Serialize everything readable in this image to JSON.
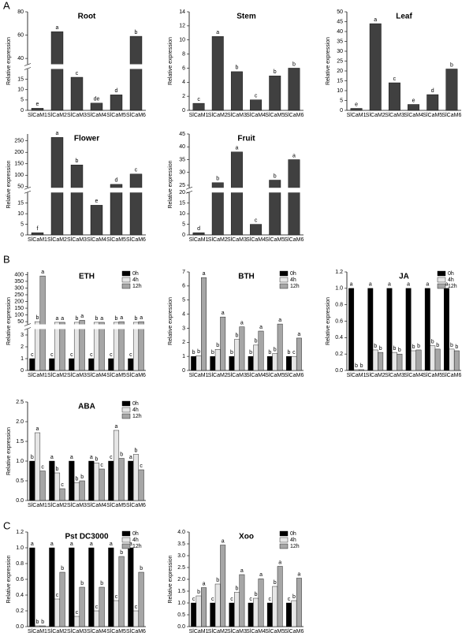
{
  "panel_labels": [
    "A",
    "B",
    "C"
  ],
  "chart_data": [
    {
      "type": "bar",
      "title": "Root",
      "ylabel": "Relative expression",
      "categories": [
        "SlCaM1",
        "SlCaM2",
        "SlCaM3",
        "SlCaM4",
        "SlCaM5",
        "SlCaM6"
      ],
      "values": [
        1,
        63,
        16,
        3.5,
        7.5,
        59
      ],
      "letters": [
        "e",
        "a",
        "c",
        "de",
        "d",
        "b"
      ],
      "color": "#404040",
      "ylim": [
        0,
        80
      ],
      "ybreak": [
        20,
        35
      ],
      "yticks": [
        0,
        5,
        10,
        15,
        40,
        60,
        80
      ]
    },
    {
      "type": "bar",
      "title": "Stem",
      "ylabel": "Relative expression",
      "categories": [
        "SlCaM1",
        "SlCaM2",
        "SlCaM3",
        "SlCaM4",
        "SlCaM5",
        "SlCaM6"
      ],
      "values": [
        1,
        10.5,
        5.5,
        1.5,
        4.9,
        6
      ],
      "letters": [
        "c",
        "a",
        "b",
        "c",
        "b",
        "b"
      ],
      "color": "#404040",
      "ylim": [
        0,
        14
      ],
      "yticks": [
        0,
        2,
        4,
        6,
        8,
        10,
        12,
        14
      ]
    },
    {
      "type": "bar",
      "title": "Leaf",
      "ylabel": "Relative expression",
      "categories": [
        "SlCaM1",
        "SlCaM2",
        "SlCaM3",
        "SlCaM4",
        "SlCaM5",
        "SlCaM6"
      ],
      "values": [
        1,
        44,
        14,
        3,
        8,
        21
      ],
      "letters": [
        "e",
        "a",
        "c",
        "e",
        "d",
        "b"
      ],
      "color": "#404040",
      "ylim": [
        0,
        50
      ],
      "yticks": [
        0,
        5,
        10,
        15,
        20,
        25,
        30,
        35,
        40,
        45,
        50
      ]
    },
    {
      "type": "bar",
      "title": "Flower",
      "ylabel": "Relative expression",
      "categories": [
        "SlCaM1",
        "SlCaM2",
        "SlCaM3",
        "SlCaM4",
        "SlCaM5",
        "SlCaM6"
      ],
      "values": [
        1,
        265,
        145,
        14,
        60,
        105
      ],
      "letters": [
        "f",
        "a",
        "b",
        "e",
        "d",
        "c"
      ],
      "color": "#404040",
      "ylim": [
        0,
        280
      ],
      "ybreak": [
        20,
        45
      ],
      "yticks": [
        0,
        5,
        10,
        15,
        50,
        100,
        150,
        200,
        250
      ]
    },
    {
      "type": "bar",
      "title": "Fruit",
      "ylabel": "Relative expression",
      "categories": [
        "SlCaM1",
        "SlCaM2",
        "SlCaM3",
        "SlCaM4",
        "SlCaM5",
        "SlCaM6"
      ],
      "values": [
        1,
        26,
        38,
        5,
        27,
        35
      ],
      "letters": [
        "d",
        "b",
        "a",
        "c",
        "b",
        "a"
      ],
      "color": "#404040",
      "ylim": [
        0,
        45
      ],
      "ybreak": [
        20,
        24
      ],
      "yticks": [
        0,
        5,
        10,
        15,
        20,
        25,
        30,
        35,
        40,
        45
      ]
    },
    {
      "type": "grouped_bar",
      "title": "ETH",
      "ylabel": "Relative expression",
      "legend": "upper right",
      "categories": [
        "SlCaM1",
        "SlCaM2",
        "SlCaM3",
        "SlCaM4",
        "SlCaM5",
        "SlCaM6"
      ],
      "ylim": [
        0,
        420
      ],
      "ybreak": [
        3.5,
        30
      ],
      "yticks": [
        0,
        1,
        2,
        3,
        50,
        100,
        150,
        200,
        250,
        300,
        350,
        400
      ],
      "series": [
        {
          "name": "0h",
          "color": "#000000",
          "values": [
            1,
            1,
            1,
            1,
            1,
            1
          ],
          "letters": [
            "c",
            "c",
            "c",
            "c",
            "c",
            "c"
          ]
        },
        {
          "name": "4h",
          "color": "#e6e6e6",
          "values": [
            50,
            45,
            45,
            45,
            45,
            45
          ],
          "letters": [
            "b",
            "a",
            "b",
            "b",
            "b",
            "b"
          ]
        },
        {
          "name": "12h",
          "color": "#a6a6a6",
          "values": [
            390,
            45,
            60,
            45,
            50,
            50
          ],
          "letters": [
            "a",
            "a",
            "a",
            "a",
            "a",
            "a"
          ]
        }
      ]
    },
    {
      "type": "grouped_bar",
      "title": "BTH",
      "ylabel": "Relative expression",
      "legend": "upper right",
      "categories": [
        "SlCaM1",
        "SlCaM2",
        "SlCaM3",
        "SlCaM4",
        "SlCaM5",
        "SlCaM6"
      ],
      "ylim": [
        0,
        7
      ],
      "yticks": [
        0,
        1,
        2,
        3,
        4,
        5,
        6,
        7
      ],
      "series": [
        {
          "name": "0h",
          "color": "#000000",
          "values": [
            1,
            1,
            1,
            1,
            1,
            1
          ],
          "letters": [
            "b",
            "b",
            "b",
            "b",
            "b",
            "b"
          ]
        },
        {
          "name": "4h",
          "color": "#e6e6e6",
          "values": [
            1.05,
            1.5,
            2.2,
            1.8,
            1.2,
            1
          ],
          "letters": [
            "b",
            "b",
            "b",
            "b",
            "b",
            "c"
          ]
        },
        {
          "name": "12h",
          "color": "#a6a6a6",
          "values": [
            6.6,
            3.8,
            3.1,
            2.8,
            3.3,
            2.3
          ],
          "letters": [
            "a",
            "a",
            "a",
            "a",
            "a",
            "a"
          ]
        }
      ]
    },
    {
      "type": "grouped_bar",
      "title": "JA",
      "ylabel": "Relative expression",
      "legend": "upper right",
      "categories": [
        "SlCaM1",
        "SlCaM2",
        "SlCaM3",
        "SlCaM4",
        "SlCaM5",
        "SlCaM6"
      ],
      "ylim": [
        0,
        1.2
      ],
      "yticks": [
        {
          "value": 0,
          "label": "0.0"
        },
        0.2,
        0.4,
        0.6,
        0.8,
        {
          "value": 1,
          "label": "1.0"
        },
        1.2
      ],
      "series": [
        {
          "name": "0h",
          "color": "#000000",
          "values": [
            1,
            1,
            1,
            1,
            1,
            1
          ],
          "letters": [
            "a",
            "a",
            "a",
            "a",
            "a",
            "a"
          ]
        },
        {
          "name": "4h",
          "color": "#e6e6e6",
          "values": [
            0.01,
            0.25,
            0.22,
            0.24,
            0.3,
            0.26
          ],
          "letters": [
            "b",
            "b",
            "b",
            "b",
            "b",
            "b"
          ]
        },
        {
          "name": "12h",
          "color": "#a6a6a6",
          "values": [
            0.01,
            0.22,
            0.2,
            0.25,
            0.26,
            0.24
          ],
          "letters": [
            "b",
            "b",
            "b",
            "b",
            "b",
            "b"
          ]
        }
      ]
    },
    {
      "type": "grouped_bar",
      "title": "ABA",
      "ylabel": "Relative expression",
      "legend": "upper right",
      "categories": [
        "SlCaM1",
        "SlCaM2",
        "SlCaM3",
        "SlCaM4",
        "SlCaM5",
        "SlCaM6"
      ],
      "ylim": [
        0,
        2.5
      ],
      "yticks": [
        {
          "value": 0,
          "label": "0.0"
        },
        0.5,
        {
          "value": 1,
          "label": "1.0"
        },
        1.5,
        {
          "value": 2,
          "label": "2.0"
        },
        2.5
      ],
      "series": [
        {
          "name": "0h",
          "color": "#000000",
          "values": [
            1,
            1,
            1,
            1,
            1,
            1
          ],
          "letters": [
            "b",
            "a",
            "a",
            "a",
            "c",
            "a"
          ]
        },
        {
          "name": "4h",
          "color": "#e6e6e6",
          "values": [
            1.72,
            0.7,
            0.45,
            0.95,
            1.78,
            1.17
          ],
          "letters": [
            "a",
            "b",
            "b",
            "b",
            "a",
            "b"
          ]
        },
        {
          "name": "12h",
          "color": "#a6a6a6",
          "values": [
            0.75,
            0.3,
            0.5,
            0.8,
            1.07,
            0.78
          ],
          "letters": [
            "c",
            "c",
            "b",
            "c",
            "b",
            "c"
          ]
        }
      ]
    },
    {
      "type": "grouped_bar",
      "title": "Pst DC3000",
      "ylabel": "Relative expression",
      "legend": "upper right",
      "categories": [
        "SlCaM1",
        "SlCaM2",
        "SlCaM3",
        "SlCaM4",
        "SlCaM5",
        "SlCaM6"
      ],
      "ylim": [
        0,
        1.2
      ],
      "yticks": [
        {
          "value": 0,
          "label": "0.0"
        },
        0.2,
        0.4,
        0.6,
        0.8,
        {
          "value": 1,
          "label": "1.0"
        },
        1.2
      ],
      "series": [
        {
          "name": "0h",
          "color": "#000000",
          "values": [
            1,
            1,
            1,
            1,
            1,
            1
          ],
          "letters": [
            "a",
            "a",
            "a",
            "a",
            "a",
            "a"
          ]
        },
        {
          "name": "4h",
          "color": "#e6e6e6",
          "values": [
            0.01,
            0.35,
            0.13,
            0.2,
            0.33,
            0.2
          ],
          "letters": [
            "b",
            "c",
            "c",
            "c",
            "c",
            "c"
          ]
        },
        {
          "name": "12h",
          "color": "#a6a6a6",
          "values": [
            0.01,
            0.69,
            0.5,
            0.5,
            0.89,
            0.69
          ],
          "letters": [
            "b",
            "b",
            "b",
            "b",
            "b",
            "b"
          ]
        }
      ]
    },
    {
      "type": "grouped_bar",
      "title": "Xoo",
      "ylabel": "Relative expression",
      "legend": "upper right",
      "categories": [
        "SlCaM1",
        "SlCaM2",
        "SlCaM3",
        "SlCaM4",
        "SlCaM5",
        "SlCaM6"
      ],
      "ylim": [
        0,
        4
      ],
      "yticks": [
        {
          "value": 0,
          "label": "0.0"
        },
        0.5,
        {
          "value": 1,
          "label": "1.0"
        },
        1.5,
        {
          "value": 2,
          "label": "2.0"
        },
        2.5,
        {
          "value": 3,
          "label": "3.0"
        },
        3.5,
        {
          "value": 4,
          "label": "4.0"
        }
      ],
      "series": [
        {
          "name": "0h",
          "color": "#000000",
          "values": [
            1,
            1,
            1,
            1,
            1,
            1
          ],
          "letters": [
            "c",
            "c",
            "c",
            "c",
            "c",
            "c"
          ]
        },
        {
          "name": "4h",
          "color": "#e6e6e6",
          "values": [
            1.3,
            1.8,
            1.45,
            1.2,
            1.7,
            1.1
          ],
          "letters": [
            "b",
            "b",
            "b",
            "b",
            "b",
            "b"
          ]
        },
        {
          "name": "12h",
          "color": "#a6a6a6",
          "values": [
            1.65,
            3.45,
            2.2,
            2.02,
            2.55,
            2.05
          ],
          "letters": [
            "a",
            "a",
            "a",
            "a",
            "a",
            "a"
          ]
        }
      ]
    }
  ]
}
